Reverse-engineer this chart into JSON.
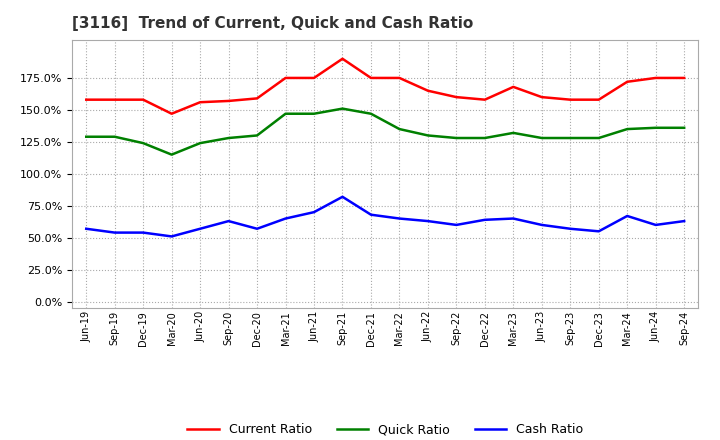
{
  "title": "[3116]  Trend of Current, Quick and Cash Ratio",
  "labels": [
    "Jun-19",
    "Sep-19",
    "Dec-19",
    "Mar-20",
    "Jun-20",
    "Sep-20",
    "Dec-20",
    "Mar-21",
    "Jun-21",
    "Sep-21",
    "Dec-21",
    "Mar-22",
    "Jun-22",
    "Sep-22",
    "Dec-22",
    "Mar-23",
    "Jun-23",
    "Sep-23",
    "Dec-23",
    "Mar-24",
    "Jun-24",
    "Sep-24"
  ],
  "current_ratio": [
    158,
    158,
    158,
    147,
    156,
    157,
    159,
    175,
    175,
    190,
    175,
    175,
    165,
    160,
    158,
    168,
    160,
    158,
    158,
    172,
    175,
    175
  ],
  "quick_ratio": [
    129,
    129,
    124,
    115,
    124,
    128,
    130,
    147,
    147,
    151,
    147,
    135,
    130,
    128,
    128,
    132,
    128,
    128,
    128,
    135,
    136,
    136
  ],
  "cash_ratio": [
    57,
    54,
    54,
    51,
    57,
    63,
    57,
    65,
    70,
    82,
    68,
    65,
    63,
    60,
    64,
    65,
    60,
    57,
    55,
    67,
    60,
    63
  ],
  "current_color": "#FF0000",
  "quick_color": "#008000",
  "cash_color": "#0000FF",
  "bg_color": "#FFFFFF",
  "plot_bg_color": "#FFFFFF",
  "grid_color": "#AAAAAA",
  "yticks": [
    0,
    25,
    50,
    75,
    100,
    125,
    150,
    175
  ],
  "ylim": [
    -5,
    205
  ],
  "line_width": 1.8
}
